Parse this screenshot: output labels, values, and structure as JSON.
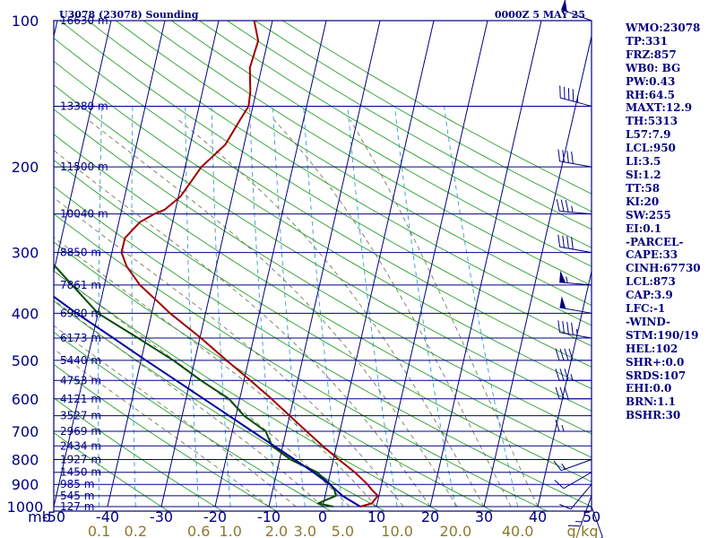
{
  "header": {
    "station": "U3078 (23078) Sounding",
    "time": "0000Z  5 MAY 25"
  },
  "axes": {
    "pressure_unit_label": "mb",
    "pressure_levels": [
      100,
      200,
      300,
      400,
      500,
      600,
      700,
      800,
      900,
      1000
    ],
    "pressure_labels": [
      "100",
      "200",
      "300",
      "400",
      "500",
      "600",
      "700",
      "800",
      "900",
      "1000"
    ],
    "heights": [
      {
        "p": 100,
        "label": "16630 m"
      },
      {
        "p": 150,
        "label": "13380 m"
      },
      {
        "p": 200,
        "label": "11500 m"
      },
      {
        "p": 250,
        "label": "10040 m"
      },
      {
        "p": 300,
        "label": "8850 m"
      },
      {
        "p": 350,
        "label": "7861 m"
      },
      {
        "p": 400,
        "label": "6980 m"
      },
      {
        "p": 450,
        "label": "6173 m"
      },
      {
        "p": 500,
        "label": "5440 m"
      },
      {
        "p": 550,
        "label": "4753 m"
      },
      {
        "p": 600,
        "label": "4121 m"
      },
      {
        "p": 650,
        "label": "3527 m"
      },
      {
        "p": 700,
        "label": "2969 m"
      },
      {
        "p": 750,
        "label": "2434 m"
      },
      {
        "p": 800,
        "label": "1927 m"
      },
      {
        "p": 850,
        "label": "1450 m"
      },
      {
        "p": 900,
        "label": "985 m"
      },
      {
        "p": 950,
        "label": "545 m"
      },
      {
        "p": 1000,
        "label": "127 m"
      }
    ],
    "temperature_ticks": [
      -50,
      -40,
      -30,
      -20,
      -10,
      0,
      10,
      20,
      30,
      40,
      50
    ],
    "temperature_labels": [
      "-50",
      "-40",
      "-30",
      "-20",
      "-10",
      "0",
      "10",
      "20",
      "30",
      "40",
      "50"
    ],
    "mixing_ratio_labels": [
      "0.1",
      "0.2",
      "0.6",
      "1.0",
      "2.0",
      "3.0",
      "5.0",
      "10.0",
      "20.0",
      "40.0"
    ],
    "mixing_ratio_unit": "g/kg"
  },
  "chart_data": {
    "type": "line",
    "title": "U3078 (23078) Sounding",
    "subtitle": "0000Z  5 MAY 25",
    "xlabel": "",
    "ylabel": "mb",
    "xlim": [
      -50,
      50
    ],
    "ylim": [
      1000,
      100
    ],
    "log_pressure": true,
    "grid": true,
    "series": [
      {
        "color": "#a00000",
        "pressure": [
          1000,
          985,
          950,
          925,
          900,
          850,
          800,
          750,
          700,
          650,
          600,
          550,
          500,
          450,
          400,
          380,
          350,
          320,
          300,
          280,
          260,
          250,
          245,
          230,
          200,
          180,
          160,
          150,
          140,
          125,
          110,
          100
        ],
        "values": [
          7.0,
          9.0,
          9.8,
          8.5,
          7.4,
          4.5,
          1.0,
          -2.6,
          -6.2,
          -10.0,
          -14.1,
          -18.8,
          -24.1,
          -29.8,
          -36.6,
          -39.2,
          -43.4,
          -46.7,
          -48.2,
          -48.2,
          -46.1,
          -43.8,
          -42.0,
          -39.6,
          -37.0,
          -33.5,
          -31.8,
          -30.8,
          -31.1,
          -32.2,
          -31.8,
          -33.4
        ]
      },
      {
        "color": "#004d00",
        "pressure": [
          1000,
          985,
          950,
          925,
          900,
          850,
          800,
          750,
          700,
          650,
          600,
          550,
          500,
          450,
          400,
          350,
          320,
          300,
          280,
          260,
          250,
          240,
          230,
          200,
          180,
          160,
          150,
          130,
          110,
          100
        ],
        "values": [
          2.0,
          -1.0,
          2.0,
          1.5,
          0.5,
          -2.5,
          -8.0,
          -12.0,
          -13.8,
          -18.5,
          -22.0,
          -28.0,
          -34.0,
          -41.5,
          -50.0,
          -56.0,
          -60.0,
          -63.2,
          -65.0,
          -66.0,
          -66.3,
          -65.8,
          -69.2,
          -71.2,
          -71.0,
          -71.5,
          -70.0,
          -72.0,
          -70.0,
          -71.0
        ]
      },
      {
        "color": "#0000a0",
        "pressure": [
          1000,
          950,
          900,
          850,
          800,
          750,
          700,
          650,
          600,
          550,
          500,
          450,
          400,
          350,
          300,
          250,
          200,
          150,
          100
        ],
        "values": [
          7.0,
          3.2,
          0.4,
          -3.2,
          -7.2,
          -11.6,
          -16.3,
          -21.3,
          -26.7,
          -32.6,
          -39.1,
          -46.1,
          -54.0,
          -62.4,
          -71.4,
          -81.2,
          -91.8,
          -103.4,
          -116.5
        ]
      }
    ],
    "wind_barbs": [
      {
        "pressure": 100,
        "dir": 290,
        "speed": 50
      },
      {
        "pressure": 150,
        "dir": 285,
        "speed": 45
      },
      {
        "pressure": 200,
        "dir": 280,
        "speed": 40
      },
      {
        "pressure": 250,
        "dir": 275,
        "speed": 35
      },
      {
        "pressure": 300,
        "dir": 280,
        "speed": 40
      },
      {
        "pressure": 350,
        "dir": 275,
        "speed": 55
      },
      {
        "pressure": 400,
        "dir": 280,
        "speed": 50
      },
      {
        "pressure": 450,
        "dir": 280,
        "speed": 45
      },
      {
        "pressure": 500,
        "dir": 270,
        "speed": 40
      },
      {
        "pressure": 550,
        "dir": 270,
        "speed": 35
      },
      {
        "pressure": 600,
        "dir": 270,
        "speed": 30
      },
      {
        "pressure": 700,
        "dir": 270,
        "speed": 15
      },
      {
        "pressure": 800,
        "dir": 250,
        "speed": 15
      },
      {
        "pressure": 850,
        "dir": 240,
        "speed": 10
      },
      {
        "pressure": 900,
        "dir": 220,
        "speed": 10
      },
      {
        "pressure": 950,
        "dir": 200,
        "speed": 15
      },
      {
        "pressure": 1000,
        "dir": 160,
        "speed": 10
      }
    ]
  },
  "panel": {
    "items": [
      "WMO:23078",
      "TP:331",
      "FRZ:857",
      "WB0: BG",
      "PW:0.43",
      "RH:64.5",
      "MAXT:12.9",
      "TH:5313",
      "L57:7.9",
      "LCL:950",
      "LI:3.5",
      "SI:1.2",
      "TT:58",
      "KI:20",
      "SW:255",
      "EI:0.1",
      "-PARCEL-",
      "CAPE:33",
      "CINH:67730",
      "LCL:873",
      "CAP:3.9",
      "LFC:-1",
      "-WIND-",
      "STM:190/19",
      "HEL:102",
      "SHR+:0.0",
      "SRDS:107",
      "EHI:0.0",
      "BRN:1.1",
      "BSHR:30"
    ]
  },
  "colors": {
    "frame": "#000080",
    "isobar": "#000080",
    "isotherm": "#000080",
    "dry_adiabat": "#2aa02a",
    "moist_adiabat": "#6b6b4a",
    "mixing_ratio": "#2e9fd0",
    "temperature": "#a00000",
    "dewpoint": "#004d00",
    "parcel": "#0000a0"
  }
}
